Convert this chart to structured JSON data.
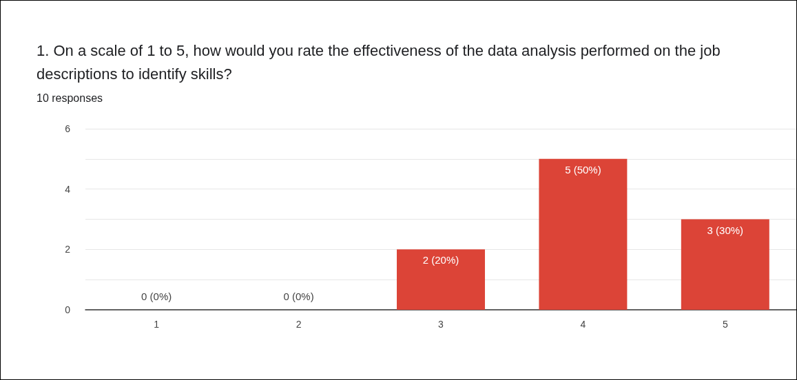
{
  "chart_data": {
    "type": "bar",
    "title": "1. On a scale of 1 to 5, how would you rate the effectiveness of the data analysis performed on the job descriptions to identify skills?",
    "subtitle": "10 responses",
    "categories": [
      "1",
      "2",
      "3",
      "4",
      "5"
    ],
    "values": [
      0,
      0,
      2,
      5,
      3
    ],
    "value_labels": [
      "0 (0%)",
      "0 (0%)",
      "2 (20%)",
      "5 (50%)",
      "3 (30%)"
    ],
    "color": "#dc4437",
    "ylim": [
      0,
      6
    ],
    "yticks": [
      0,
      {
        "value": 1,
        "label": null
      },
      2,
      {
        "value": 3,
        "label": null
      },
      4,
      {
        "value": 5,
        "label": null
      },
      6
    ],
    "grid": "y"
  }
}
